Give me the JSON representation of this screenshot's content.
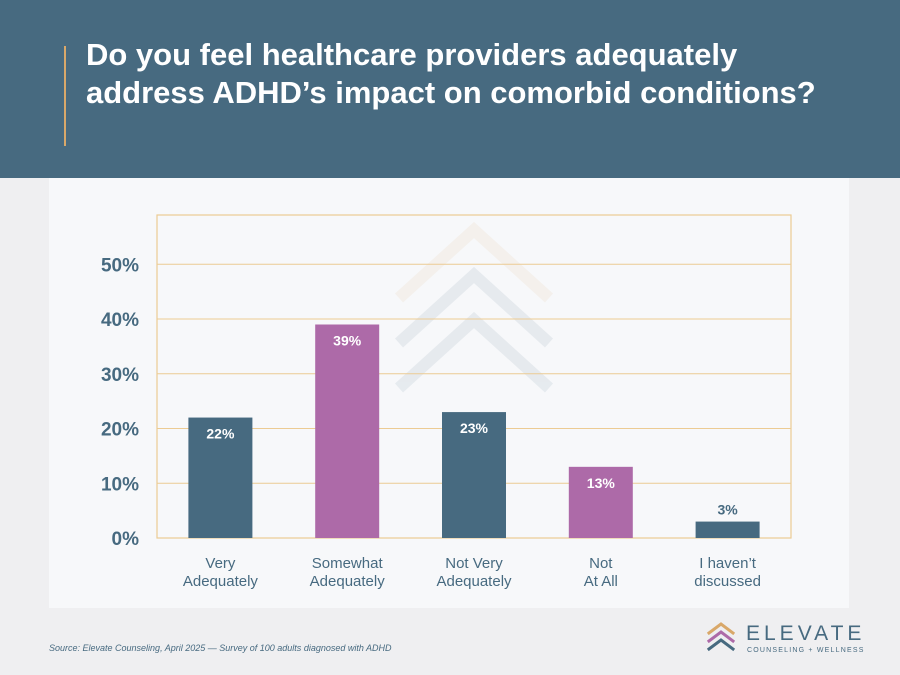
{
  "header": {
    "title": "Do you feel healthcare providers adequately address ADHD’s impact on comorbid conditions?"
  },
  "colors": {
    "header_bg": "#476a80",
    "bar_primary": "#476a80",
    "bar_accent": "#ad6aa8",
    "grid": "#eccb93",
    "accent_line": "#d9a86a"
  },
  "chart_data": {
    "type": "bar",
    "categories": [
      [
        "Very",
        "Adequately"
      ],
      [
        "Somewhat",
        "Adequately"
      ],
      [
        "Not Very",
        "Adequately"
      ],
      [
        "Not",
        "At All"
      ],
      [
        "I haven’t",
        "discussed"
      ]
    ],
    "values": [
      22,
      39,
      23,
      13,
      3
    ],
    "data_labels": [
      "22%",
      "39%",
      "23%",
      "13%",
      "3%"
    ],
    "bar_colors": [
      "#476a80",
      "#ad6aa8",
      "#476a80",
      "#ad6aa8",
      "#476a80"
    ],
    "yticks": [
      0,
      10,
      20,
      30,
      40,
      50
    ],
    "ytick_labels": [
      "0%",
      "10%",
      "20%",
      "30%",
      "40%",
      "50%"
    ],
    "ylim": [
      0,
      59
    ],
    "grid": true,
    "legend": "none"
  },
  "footer": {
    "source": "Source: Elevate Counseling, April 2025 — Survey of 100 adults diagnosed with ADHD",
    "logo_name": "ELEVATE",
    "logo_tagline": "COUNSELING + WELLNESS"
  }
}
